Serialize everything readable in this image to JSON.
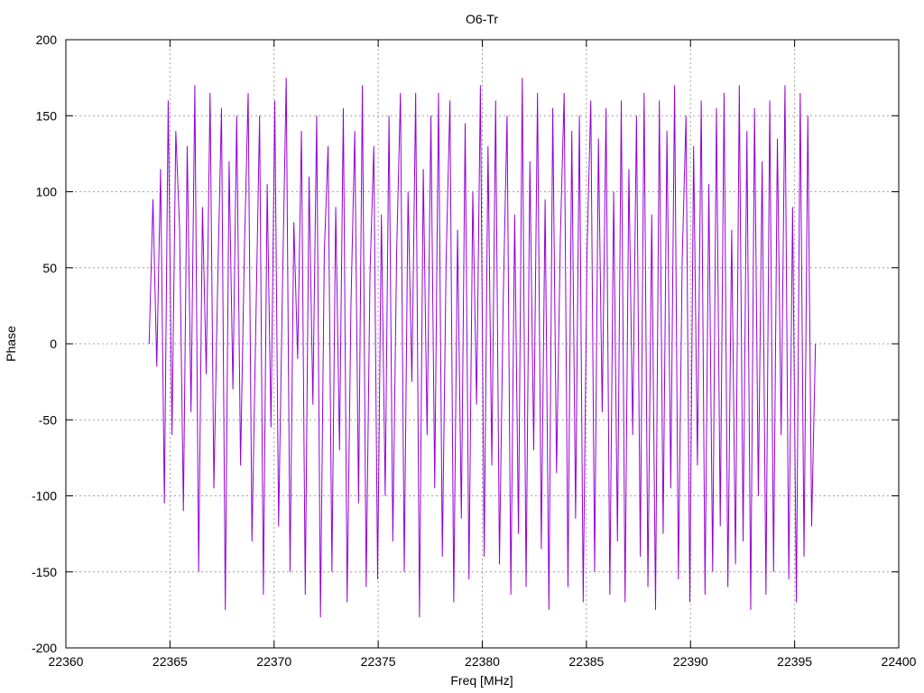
{
  "chart_data": {
    "type": "line",
    "title": "O6-Tr",
    "xlabel": "Freq [MHz]",
    "ylabel": "Phase",
    "xlim": [
      22360,
      22400
    ],
    "ylim": [
      -200,
      200
    ],
    "xticks": [
      22360,
      22365,
      22370,
      22375,
      22380,
      22385,
      22390,
      22395,
      22400
    ],
    "yticks": [
      -200,
      -150,
      -100,
      -50,
      0,
      50,
      100,
      150,
      200
    ],
    "grid": true,
    "series_color": "#9400d3",
    "series": [
      {
        "x_start": 22364.0,
        "x_end": 22396.0,
        "values": [
          0,
          95,
          -15,
          115,
          -105,
          160,
          -60,
          140,
          75,
          -110,
          130,
          -45,
          170,
          -150,
          90,
          -20,
          165,
          -95,
          40,
          155,
          -175,
          120,
          -30,
          150,
          -80,
          60,
          165,
          -130,
          10,
          150,
          -165,
          105,
          -55,
          160,
          -120,
          35,
          175,
          -150,
          80,
          -10,
          140,
          -165,
          110,
          -40,
          150,
          -180,
          60,
          130,
          -150,
          90,
          -70,
          155,
          -170,
          25,
          140,
          -105,
          170,
          -160,
          45,
          130,
          -155,
          85,
          -100,
          150,
          -130,
          60,
          165,
          -150,
          100,
          -25,
          165,
          -180,
          115,
          -60,
          150,
          -95,
          165,
          -140,
          55,
          160,
          -170,
          75,
          -115,
          145,
          -155,
          100,
          -40,
          170,
          -140,
          130,
          -80,
          160,
          -145,
          30,
          150,
          -165,
          85,
          -125,
          175,
          -160,
          120,
          -70,
          165,
          -135,
          95,
          -175,
          155,
          -85,
          70,
          165,
          -160,
          140,
          -115,
          150,
          -170,
          60,
          160,
          -150,
          135,
          -45,
          155,
          -165,
          100,
          -130,
          160,
          -170,
          115,
          -60,
          150,
          -140,
          165,
          -160,
          85,
          -175,
          160,
          -125,
          140,
          -95,
          170,
          -155,
          55,
          150,
          -170,
          130,
          -80,
          160,
          -165,
          105,
          -150,
          155,
          -120,
          165,
          -160,
          75,
          -145,
          170,
          -130,
          140,
          -175,
          155,
          -100,
          120,
          -165,
          160,
          -150,
          135,
          -60,
          170,
          -155,
          90,
          -170,
          165,
          -140,
          150,
          -120,
          0
        ]
      }
    ]
  }
}
